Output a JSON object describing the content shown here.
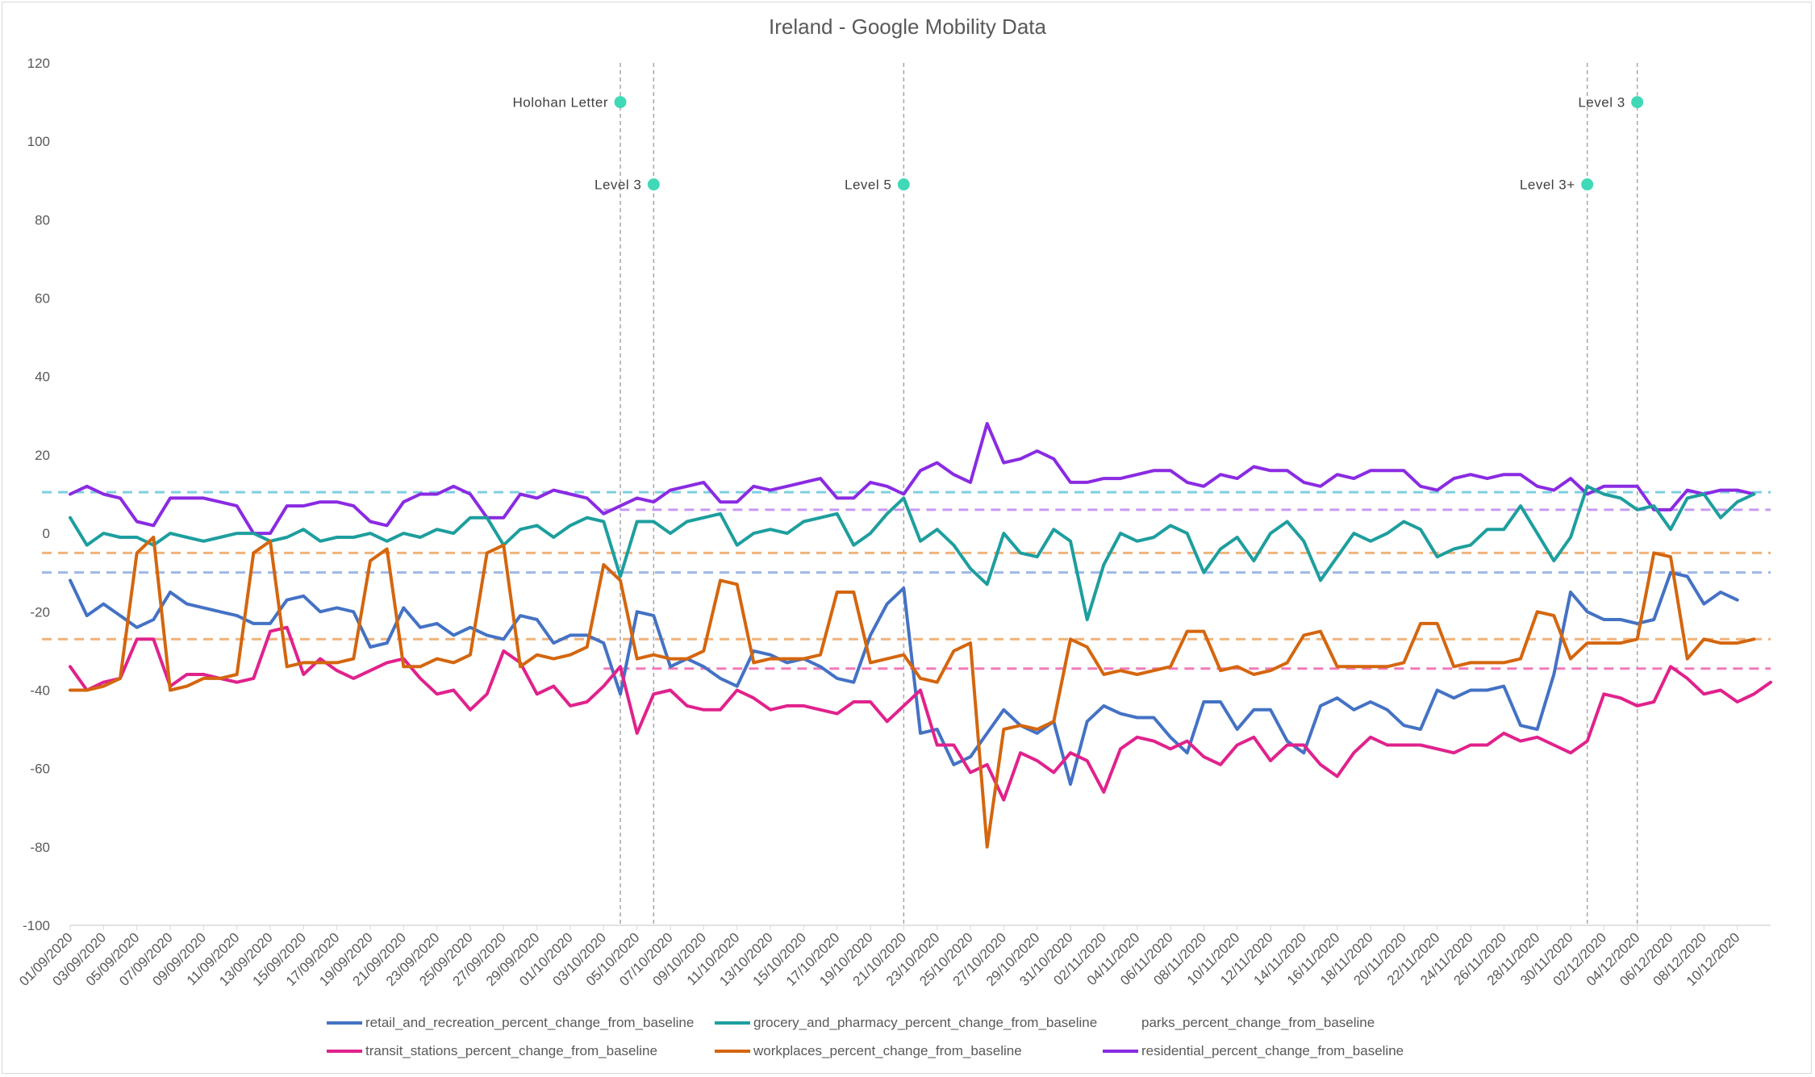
{
  "chart_data": {
    "type": "line",
    "title": "Ireland - Google Mobility Data",
    "xlabel": "",
    "ylabel": "",
    "ylim": [
      -100,
      120
    ],
    "yticks": [
      "120",
      "100",
      "80",
      "60",
      "40",
      "20",
      "0",
      "-20",
      "-40",
      "-60",
      "-80",
      "-100"
    ],
    "grid": false,
    "legend_position": "bottom",
    "x_tick_labels": [
      "01/09/2020",
      "03/09/2020",
      "05/09/2020",
      "07/09/2020",
      "09/09/2020",
      "11/09/2020",
      "13/09/2020",
      "15/09/2020",
      "17/09/2020",
      "19/09/2020",
      "21/09/2020",
      "23/09/2020",
      "25/09/2020",
      "27/09/2020",
      "29/09/2020",
      "01/10/2020",
      "03/10/2020",
      "05/10/2020",
      "07/10/2020",
      "09/10/2020",
      "11/10/2020",
      "13/10/2020",
      "15/10/2020",
      "17/10/2020",
      "19/10/2020",
      "21/10/2020",
      "23/10/2020",
      "25/10/2020",
      "27/10/2020",
      "29/10/2020",
      "31/10/2020",
      "02/11/2020",
      "04/11/2020",
      "06/11/2020",
      "08/11/2020",
      "10/11/2020",
      "12/11/2020",
      "14/11/2020",
      "16/11/2020",
      "18/11/2020",
      "20/11/2020",
      "22/11/2020",
      "24/11/2020",
      "26/11/2020",
      "28/11/2020",
      "30/11/2020",
      "02/12/2020",
      "04/12/2020",
      "06/12/2020",
      "08/12/2020",
      "10/12/2020"
    ],
    "x_start": "01/09/2020",
    "x_end": "11/12/2020",
    "series": [
      {
        "name": "retail_and_recreation_percent_change_from_baseline",
        "color": "#4472c4",
        "values": [
          -12,
          -21,
          -18,
          -21,
          -24,
          -22,
          -15,
          -18,
          -19,
          -20,
          -21,
          -23,
          -23,
          -17,
          -16,
          -20,
          -19,
          -20,
          -29,
          -28,
          -19,
          -24,
          -23,
          -26,
          -24,
          -26,
          -27,
          -21,
          -22,
          -28,
          -26,
          -26,
          -28,
          -41,
          -20,
          -21,
          -34,
          -32,
          -34,
          -37,
          -39,
          -30,
          -31,
          -33,
          -32,
          -34,
          -37,
          -38,
          -26,
          -18,
          -14,
          -51,
          -50,
          -59,
          -57,
          -51,
          -45,
          -49,
          -51,
          -48,
          -64,
          -48,
          -44,
          -46,
          -47,
          -47,
          -52,
          -56,
          -43,
          -43,
          -50,
          -45,
          -45,
          -53,
          -56,
          -44,
          -42,
          -45,
          -43,
          -45,
          -49,
          -50,
          -40,
          -42,
          -40,
          -40,
          -39,
          -49,
          -50,
          -36,
          -15,
          -20,
          -22,
          -22,
          -23,
          -22,
          -10,
          -11,
          -18,
          -15,
          -17
        ]
      },
      {
        "name": "grocery_and_pharmacy_percent_change_from_baseline",
        "color": "#1e9e9e",
        "values": [
          4,
          -3,
          0,
          -1,
          -1,
          -3,
          0,
          -1,
          -2,
          -1,
          0,
          0,
          -2,
          -1,
          1,
          -2,
          -1,
          -1,
          0,
          -2,
          0,
          -1,
          1,
          0,
          4,
          4,
          -3,
          1,
          2,
          -1,
          2,
          4,
          3,
          -11,
          3,
          3,
          0,
          3,
          4,
          5,
          -3,
          0,
          1,
          0,
          3,
          4,
          5,
          -3,
          0,
          5,
          9,
          -2,
          1,
          -3,
          -9,
          -13,
          0,
          -5,
          -6,
          1,
          -2,
          -22,
          -8,
          0,
          -2,
          -1,
          2,
          0,
          -10,
          -4,
          -1,
          -7,
          0,
          3,
          -2,
          -12,
          -6,
          0,
          -2,
          0,
          3,
          1,
          -6,
          -4,
          -3,
          1,
          1,
          7,
          0,
          -7,
          -1,
          12,
          10,
          9,
          6,
          7,
          1,
          9,
          10,
          4,
          8,
          10
        ]
      },
      {
        "name": "parks_percent_change_from_baseline",
        "color": "#a5a5a5",
        "values": []
      },
      {
        "name": "transit_stations_percent_change_from_baseline",
        "color": "#e0228c",
        "values": [
          -34,
          -40,
          -38,
          -37,
          -27,
          -27,
          -39,
          -36,
          -36,
          -37,
          -38,
          -37,
          -25,
          -24,
          -36,
          -32,
          -35,
          -37,
          -35,
          -33,
          -32,
          -37,
          -41,
          -40,
          -45,
          -41,
          -30,
          -33,
          -41,
          -39,
          -44,
          -43,
          -39,
          -34,
          -51,
          -41,
          -40,
          -44,
          -45,
          -45,
          -40,
          -42,
          -45,
          -44,
          -44,
          -45,
          -46,
          -43,
          -43,
          -48,
          -44,
          -40,
          -54,
          -54,
          -61,
          -59,
          -68,
          -56,
          -58,
          -61,
          -56,
          -58,
          -66,
          -55,
          -52,
          -53,
          -55,
          -53,
          -57,
          -59,
          -54,
          -52,
          -58,
          -54,
          -54,
          -59,
          -62,
          -56,
          -52,
          -54,
          -54,
          -54,
          -55,
          -56,
          -54,
          -54,
          -51,
          -53,
          -52,
          -54,
          -56,
          -53,
          -41,
          -42,
          -44,
          -43,
          -34,
          -37,
          -41,
          -40,
          -43,
          -41,
          -38
        ]
      },
      {
        "name": "workplaces_percent_change_from_baseline",
        "color": "#d4660e",
        "values": [
          -40,
          -40,
          -39,
          -37,
          -5,
          -1,
          -40,
          -39,
          -37,
          -37,
          -36,
          -5,
          -2,
          -34,
          -33,
          -33,
          -33,
          -32,
          -7,
          -4,
          -34,
          -34,
          -32,
          -33,
          -31,
          -5,
          -3,
          -34,
          -31,
          -32,
          -31,
          -29,
          -8,
          -12,
          -32,
          -31,
          -32,
          -32,
          -30,
          -12,
          -13,
          -33,
          -32,
          -32,
          -32,
          -31,
          -15,
          -15,
          -33,
          -32,
          -31,
          -37,
          -38,
          -30,
          -28,
          -80,
          -50,
          -49,
          -50,
          -48,
          -27,
          -29,
          -36,
          -35,
          -36,
          -35,
          -34,
          -25,
          -25,
          -35,
          -34,
          -36,
          -35,
          -33,
          -26,
          -25,
          -34,
          -34,
          -34,
          -34,
          -33,
          -23,
          -23,
          -34,
          -33,
          -33,
          -33,
          -32,
          -20,
          -21,
          -32,
          -28,
          -28,
          -28,
          -27,
          -5,
          -6,
          -32,
          -27,
          -28,
          -28,
          -27
        ]
      },
      {
        "name": "residential_percent_change_from_baseline",
        "color": "#8a2be2",
        "values": [
          10,
          12,
          10,
          9,
          3,
          2,
          9,
          9,
          9,
          8,
          7,
          0,
          0,
          7,
          7,
          8,
          8,
          7,
          3,
          2,
          8,
          10,
          10,
          12,
          10,
          4,
          4,
          10,
          9,
          11,
          10,
          9,
          5,
          7,
          9,
          8,
          11,
          12,
          13,
          8,
          8,
          12,
          11,
          12,
          13,
          14,
          9,
          9,
          13,
          12,
          10,
          16,
          18,
          15,
          13,
          28,
          18,
          19,
          21,
          19,
          13,
          13,
          14,
          14,
          15,
          16,
          16,
          13,
          12,
          15,
          14,
          17,
          16,
          16,
          13,
          12,
          15,
          14,
          16,
          16,
          16,
          12,
          11,
          14,
          15,
          14,
          15,
          15,
          12,
          11,
          14,
          10,
          12,
          12,
          12,
          6,
          6,
          11,
          10,
          11,
          11,
          10
        ]
      }
    ],
    "reference_lines": [
      {
        "series": "grocery_and_pharmacy_percent_change_from_baseline",
        "value": 10.5,
        "color": "#7fcfe0"
      },
      {
        "series": "residential_percent_change_from_baseline",
        "value": 6,
        "color": "#c79af0",
        "from_index": 32
      },
      {
        "series": "workplaces_percent_change_from_baseline",
        "value": -5,
        "color": "#f0b27a"
      },
      {
        "series": "retail_and_recreation_percent_change_from_baseline",
        "value": -10,
        "color": "#9fb7e6"
      },
      {
        "series": "workplaces_percent_change_from_baseline",
        "value": -27,
        "color": "#f0b27a"
      },
      {
        "series": "transit_stations_percent_change_from_baseline",
        "value": -34.5,
        "color": "#f07ab9",
        "from_index": 32
      }
    ],
    "annotations": [
      {
        "label": "Holohan Letter",
        "index": 33,
        "y": 110,
        "color": "#40d9b8"
      },
      {
        "label": "Level 3",
        "index": 35,
        "y": 89,
        "color": "#40d9b8"
      },
      {
        "label": "Level 5",
        "index": 50,
        "y": 89,
        "color": "#40d9b8"
      },
      {
        "label": "Level 3+",
        "index": 91,
        "y": 89,
        "color": "#40d9b8"
      },
      {
        "label": "Level 3",
        "index": 94,
        "y": 110,
        "color": "#40d9b8"
      }
    ]
  }
}
